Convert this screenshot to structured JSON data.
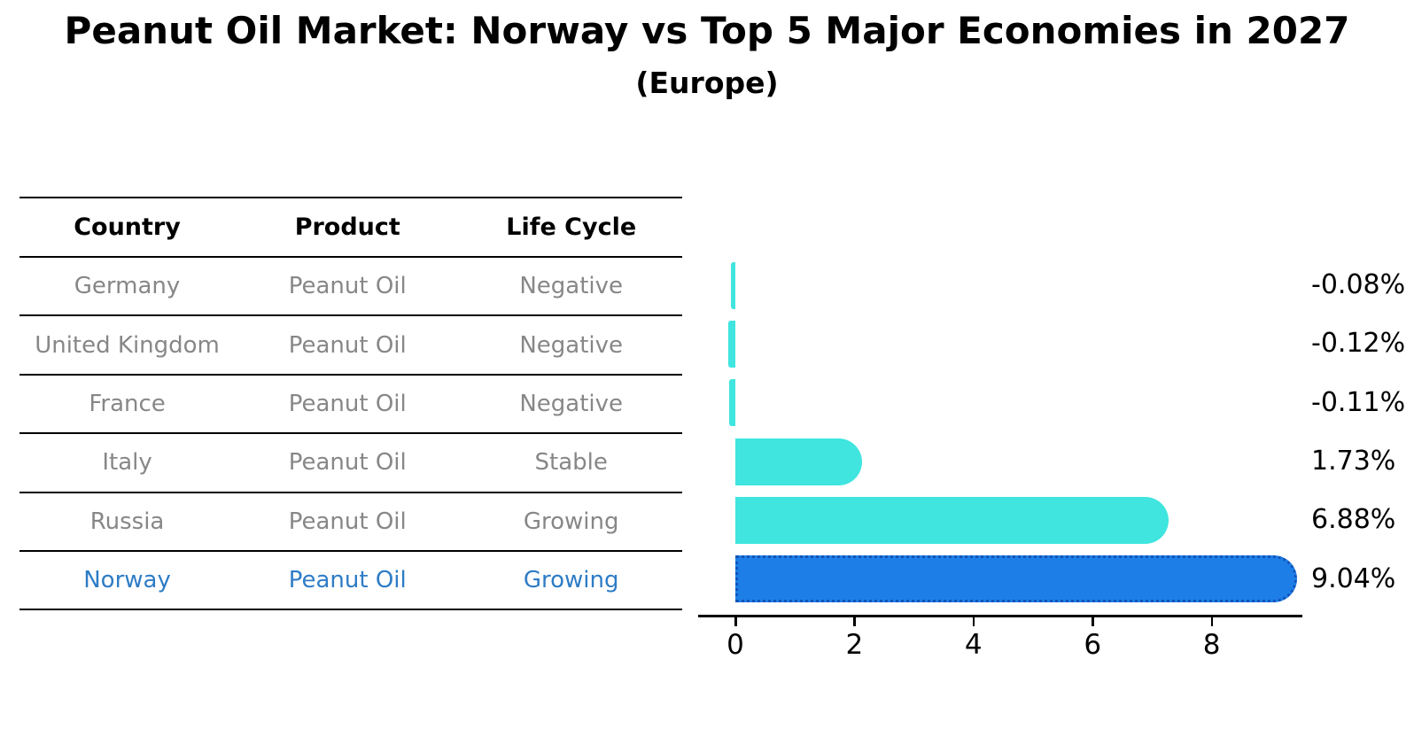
{
  "title": "Peanut Oil Market: Norway vs Top 5 Major Economies in 2027",
  "subtitle": "(Europe)",
  "table": {
    "headers": [
      "Country",
      "Product",
      "Life Cycle"
    ],
    "rows": [
      {
        "country": "Germany",
        "product": "Peanut Oil",
        "life_cycle": "Negative",
        "highlight": false
      },
      {
        "country": "United Kingdom",
        "product": "Peanut Oil",
        "life_cycle": "Negative",
        "highlight": false
      },
      {
        "country": "France",
        "product": "Peanut Oil",
        "life_cycle": "Negative",
        "highlight": false
      },
      {
        "country": "Italy",
        "product": "Peanut Oil",
        "life_cycle": "Stable",
        "highlight": false
      },
      {
        "country": "Russia",
        "product": "Peanut Oil",
        "life_cycle": "Growing",
        "highlight": false
      },
      {
        "country": "Norway",
        "product": "Peanut Oil",
        "life_cycle": "Growing",
        "highlight": true
      }
    ]
  },
  "chart_data": {
    "type": "bar",
    "orientation": "horizontal",
    "title": "Peanut Oil Market: Norway vs Top 5 Major Economies in 2027 (Europe)",
    "categories": [
      "Germany",
      "United Kingdom",
      "France",
      "Italy",
      "Russia",
      "Norway"
    ],
    "values": [
      -0.08,
      -0.12,
      -0.11,
      1.73,
      6.88,
      9.04
    ],
    "value_labels": [
      "-0.08%",
      "-0.12%",
      "-0.11%",
      "1.73%",
      "6.88%",
      "9.04%"
    ],
    "xticks": [
      0,
      2,
      4,
      6,
      8
    ],
    "xlim": [
      -0.6,
      9.5
    ],
    "grid": false,
    "legend": false,
    "highlight_index": 5,
    "colors": {
      "bar": "#3FE5DE",
      "highlight_bar": "#1E7EE8",
      "highlight_border": "#1254B8",
      "row_text": "#878787",
      "highlight_text": "#2E7CC6",
      "axis": "#000000",
      "background": "#ffffff"
    }
  }
}
